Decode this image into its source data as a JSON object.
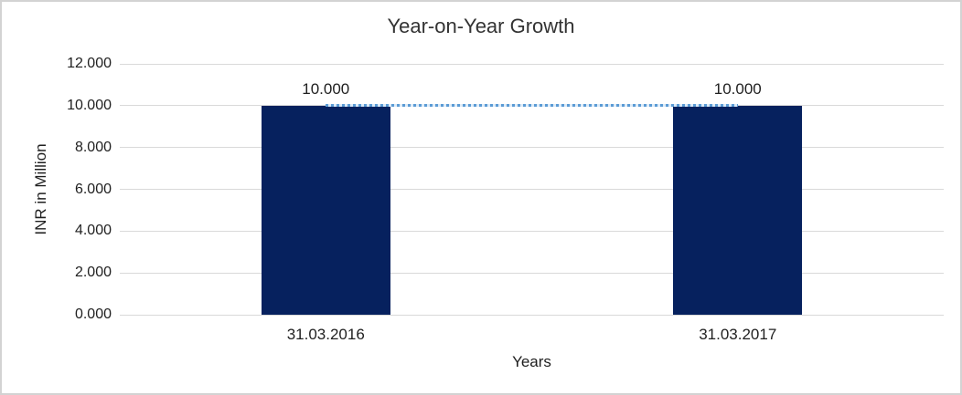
{
  "chart": {
    "background": "#FFFFFF",
    "border_color": "#D3D3D3",
    "text_color": "#1F1F1F"
  },
  "chart_data": {
    "type": "bar",
    "title": "Year-on-Year Growth",
    "xlabel": "Years",
    "ylabel": "INR in Million",
    "categories": [
      "31.03.2016",
      "31.03.2017"
    ],
    "values": [
      10.0,
      10.0
    ],
    "bar_labels": [
      "10.000",
      "10.000"
    ],
    "bar_color": "#06215E",
    "connector_line": {
      "type": "line",
      "style": "dotted",
      "color": "#5B9BD5",
      "values": [
        10.0,
        10.0
      ]
    },
    "ylim": [
      0,
      12
    ],
    "ytick_values": [
      12,
      10,
      8,
      6,
      4,
      2,
      0
    ],
    "ytick_labels": [
      "12.000",
      "10.000",
      "8.000",
      "6.000",
      "4.000",
      "2.000",
      "0.000"
    ],
    "grid": true,
    "gridline_color": "#D9D9D9",
    "legend": "none"
  }
}
